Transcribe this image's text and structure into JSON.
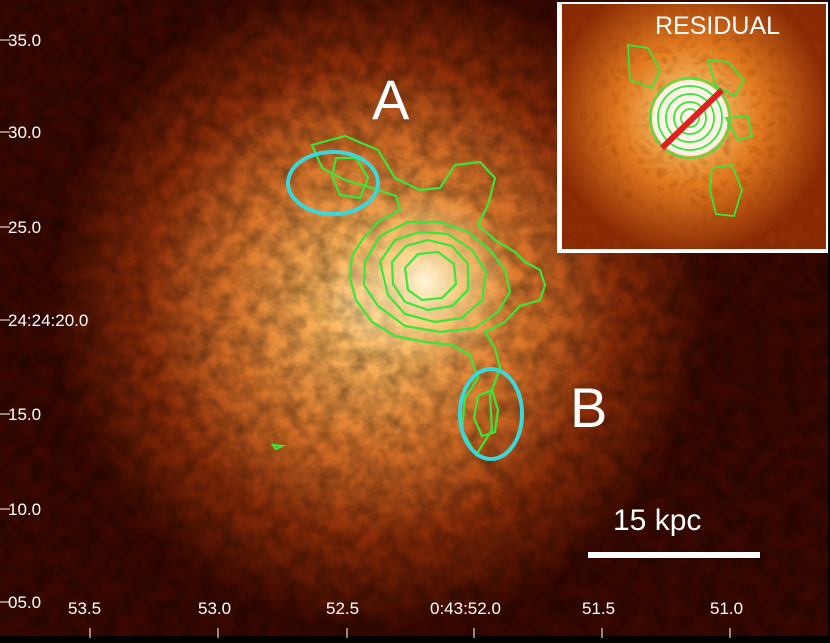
{
  "labels": {
    "region_a": "A",
    "region_b": "B",
    "residual": "RESIDUAL",
    "scale_bar": "15 kpc"
  },
  "dec_ticks": [
    "35.0",
    "30.0",
    "25.0",
    "24:24:20.0",
    "15.0",
    "10.0",
    "05.0"
  ],
  "ra_ticks": [
    "53.5",
    "53.0",
    "52.5",
    "0:43:52.0",
    "51.5",
    "51.0"
  ],
  "colors": {
    "contour": "#39e639",
    "ellipse": "#3ad8d8",
    "slit": "#e02020",
    "text": "#ffffff"
  }
}
